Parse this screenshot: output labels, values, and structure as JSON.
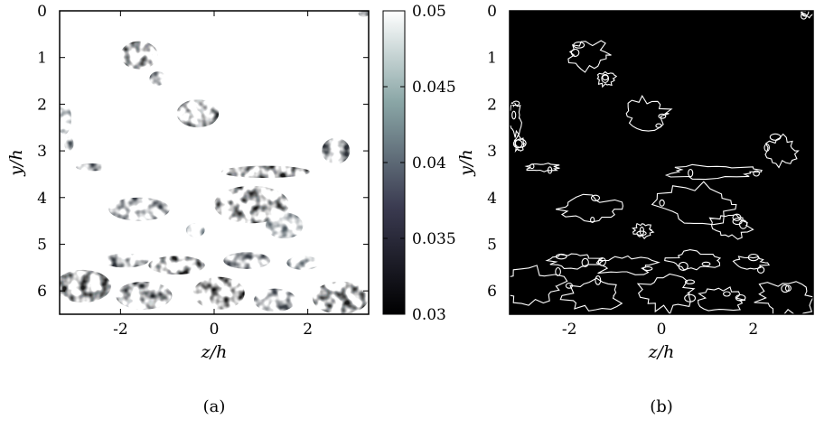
{
  "chart_data": [
    {
      "type": "heatmap",
      "panel_label": "(a)",
      "xlabel": "z/h",
      "ylabel": "y/h",
      "xlim": [
        -3.3,
        3.3
      ],
      "ylim": [
        6.5,
        0
      ],
      "xticks": [
        -2,
        0,
        2
      ],
      "yticks": [
        0,
        1,
        2,
        3,
        4,
        5,
        6
      ],
      "colorbar": {
        "range": [
          0.03,
          0.05
        ],
        "ticks": [
          0.03,
          0.035,
          0.04,
          0.045,
          0.05
        ],
        "tick_labels": [
          "0.03",
          "0.035",
          "0.04",
          "0.045",
          "0.05"
        ],
        "colormap": "bone",
        "low_color": "#000000",
        "high_color": "#ffffff"
      },
      "background_value": 0.05,
      "patches": [
        {
          "z": -1.6,
          "y": 0.95,
          "rz": 0.4,
          "ry": 0.3,
          "value": 0.031
        },
        {
          "z": -1.2,
          "y": 1.45,
          "rz": 0.18,
          "ry": 0.15,
          "value": 0.034
        },
        {
          "z": -0.35,
          "y": 2.2,
          "rz": 0.45,
          "ry": 0.3,
          "value": 0.032
        },
        {
          "z": -3.2,
          "y": 2.3,
          "rz": 0.15,
          "ry": 0.35,
          "value": 0.036
        },
        {
          "z": -3.1,
          "y": 2.85,
          "rz": 0.1,
          "ry": 0.15,
          "value": 0.035
        },
        {
          "z": 2.6,
          "y": 3.0,
          "rz": 0.3,
          "ry": 0.28,
          "value": 0.033
        },
        {
          "z": -2.6,
          "y": 3.35,
          "rz": 0.35,
          "ry": 0.08,
          "value": 0.034
        },
        {
          "z": 1.1,
          "y": 3.45,
          "rz": 0.95,
          "ry": 0.13,
          "value": 0.031
        },
        {
          "z": 0.8,
          "y": 4.15,
          "rz": 0.8,
          "ry": 0.4,
          "value": 0.031
        },
        {
          "z": -1.6,
          "y": 4.25,
          "rz": 0.65,
          "ry": 0.25,
          "value": 0.034
        },
        {
          "z": 1.5,
          "y": 4.6,
          "rz": 0.4,
          "ry": 0.28,
          "value": 0.036
        },
        {
          "z": -0.4,
          "y": 4.7,
          "rz": 0.2,
          "ry": 0.15,
          "value": 0.038
        },
        {
          "z": -1.9,
          "y": 5.35,
          "rz": 0.5,
          "ry": 0.15,
          "value": 0.033
        },
        {
          "z": -0.8,
          "y": 5.45,
          "rz": 0.6,
          "ry": 0.2,
          "value": 0.031
        },
        {
          "z": 0.7,
          "y": 5.35,
          "rz": 0.5,
          "ry": 0.18,
          "value": 0.034
        },
        {
          "z": 1.9,
          "y": 5.4,
          "rz": 0.35,
          "ry": 0.15,
          "value": 0.036
        },
        {
          "z": -2.8,
          "y": 5.9,
          "rz": 0.6,
          "ry": 0.35,
          "value": 0.031
        },
        {
          "z": -1.5,
          "y": 6.1,
          "rz": 0.6,
          "ry": 0.3,
          "value": 0.032
        },
        {
          "z": 0.1,
          "y": 6.05,
          "rz": 0.55,
          "ry": 0.35,
          "value": 0.03
        },
        {
          "z": 1.3,
          "y": 6.2,
          "rz": 0.45,
          "ry": 0.25,
          "value": 0.034
        },
        {
          "z": 2.7,
          "y": 6.15,
          "rz": 0.6,
          "ry": 0.35,
          "value": 0.031
        },
        {
          "z": 3.2,
          "y": 0.05,
          "rz": 0.12,
          "ry": 0.08,
          "value": 0.033
        }
      ]
    },
    {
      "type": "heatmap",
      "panel_label": "(b)",
      "xlabel": "z/h",
      "ylabel": "y/h",
      "xlim": [
        -3.3,
        3.3
      ],
      "ylim": [
        6.5,
        0
      ],
      "xticks": [
        -2,
        0,
        2
      ],
      "yticks": [
        0,
        1,
        2,
        3,
        4,
        5,
        6
      ],
      "description_values": "binary contour map of the region boundaries",
      "background_color": "#000000",
      "contour_color": "#ffffff"
    }
  ]
}
